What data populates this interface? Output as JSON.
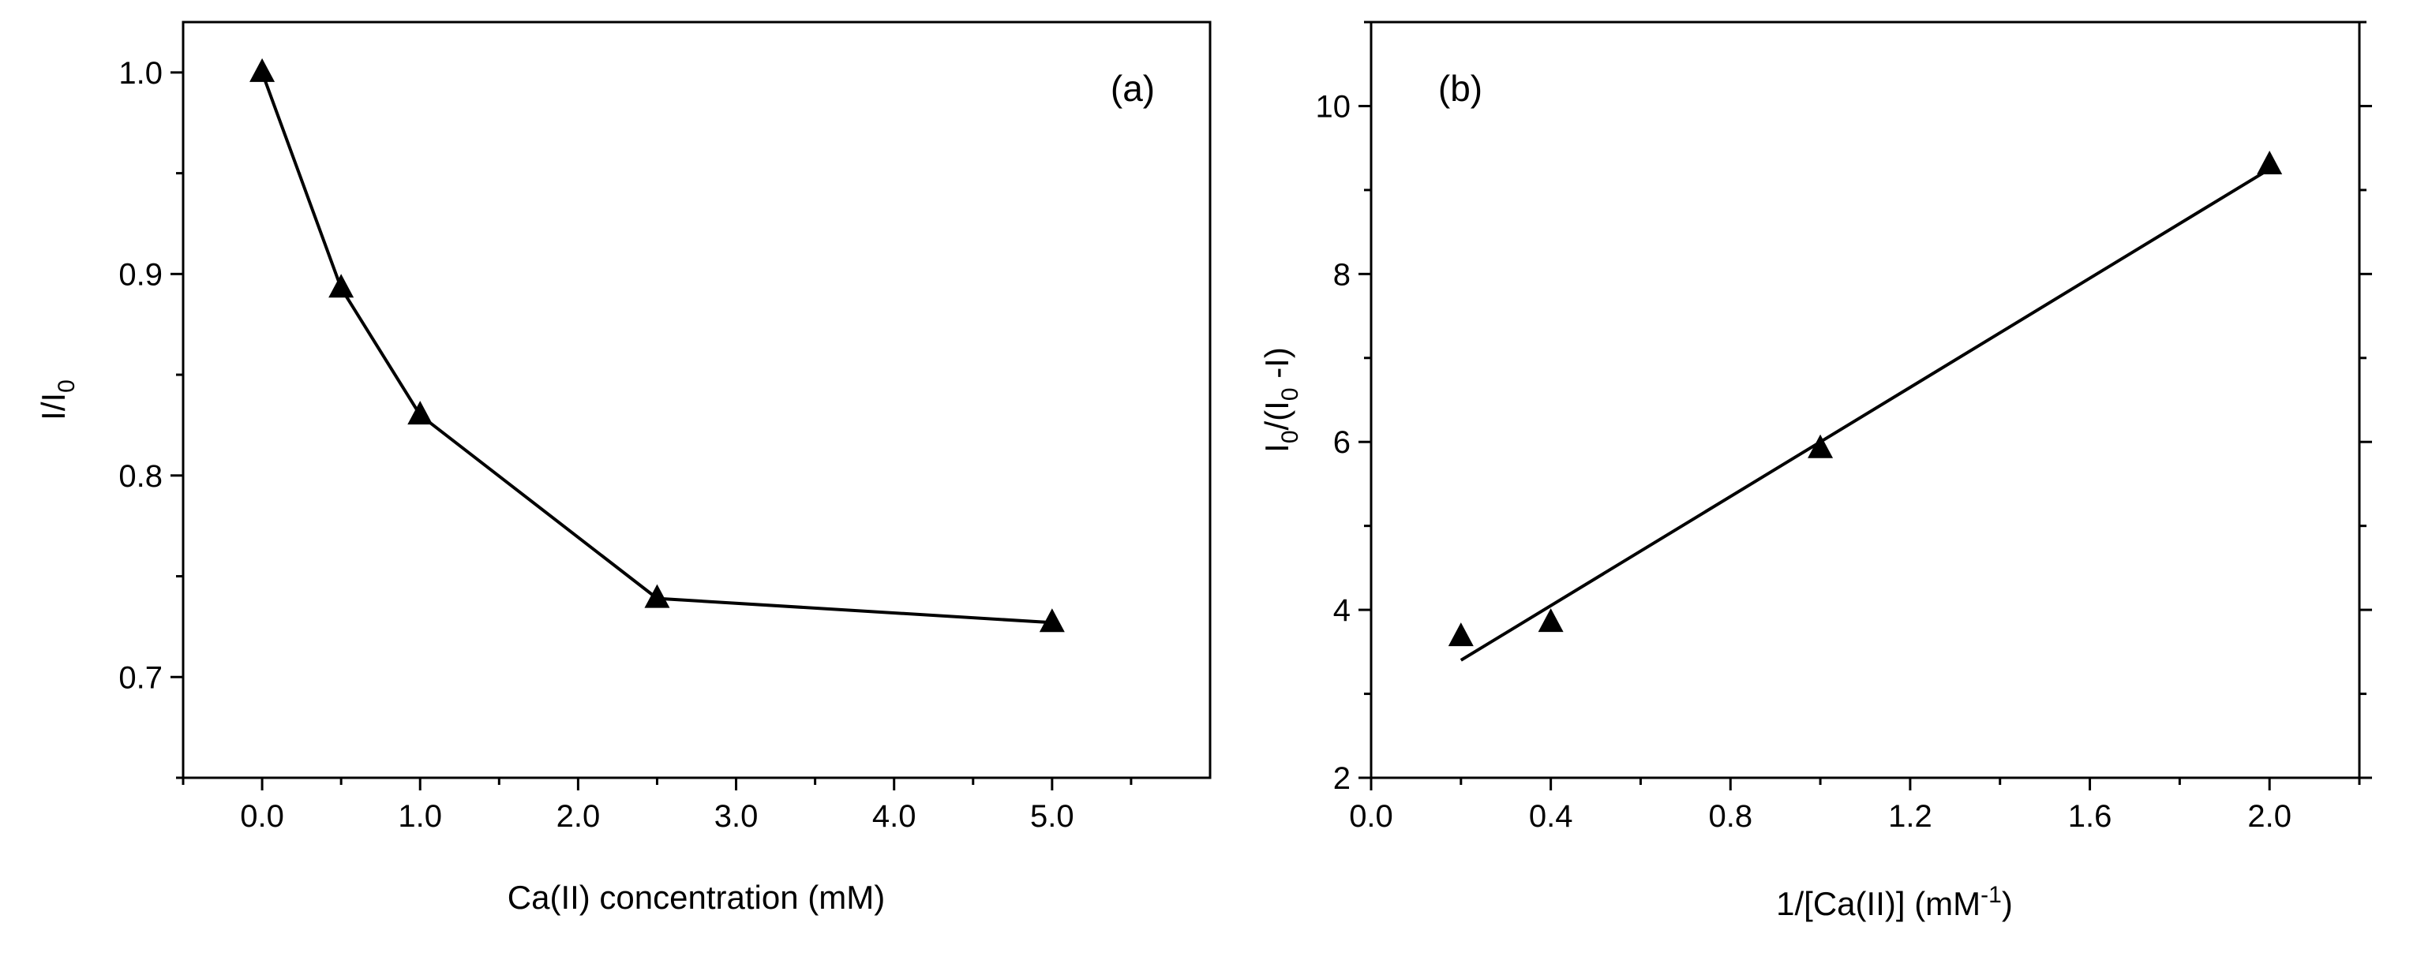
{
  "chart_data": [
    {
      "type": "line",
      "panel_label": "(a)",
      "xlabel": "Ca(II) concentration (mM)",
      "ylabel_main": "I/I",
      "ylabel_sub": "0",
      "xlim": [
        -0.5,
        6.0
      ],
      "ylim": [
        0.65,
        1.025
      ],
      "x_ticks": [
        0.0,
        1.0,
        2.0,
        3.0,
        4.0,
        5.0
      ],
      "x_tick_labels": [
        "0.0",
        "1.0",
        "2.0",
        "3.0",
        "4.0",
        "5.0"
      ],
      "x_minor_ticks": [
        -0.5,
        0.5,
        1.5,
        2.5,
        3.5,
        4.5,
        5.5
      ],
      "y_ticks": [
        0.7,
        0.8,
        0.9,
        1.0
      ],
      "y_tick_labels": [
        "0.7",
        "0.8",
        "0.9",
        "1.0"
      ],
      "y_minor_ticks": [
        0.65,
        0.75,
        0.85,
        0.95
      ],
      "series": [
        {
          "name": "I/I0",
          "marker": "triangle",
          "connect": true,
          "x": [
            0.0,
            0.5,
            1.0,
            2.5,
            5.0
          ],
          "y": [
            1.0,
            0.893,
            0.83,
            0.739,
            0.727
          ]
        }
      ],
      "grid": false
    },
    {
      "type": "scatter",
      "panel_label": "(b)",
      "xlabel_main": "1/[Ca(II)] (mM",
      "xlabel_sup": "-1",
      "xlabel_end": ")",
      "ylabel_parts": [
        "I",
        "0",
        "/(I",
        "0",
        " -I)"
      ],
      "xlim": [
        0.0,
        2.2
      ],
      "ylim": [
        2,
        11
      ],
      "x_ticks": [
        0.0,
        0.4,
        0.8,
        1.2,
        1.6,
        2.0
      ],
      "x_tick_labels": [
        "0.0",
        "0.4",
        "0.8",
        "1.2",
        "1.6",
        "2.0"
      ],
      "x_minor_ticks": [
        0.2,
        0.6,
        1.0,
        1.4,
        1.8,
        2.2
      ],
      "y_ticks": [
        2,
        4,
        6,
        8,
        10
      ],
      "y_tick_labels": [
        "2",
        "4",
        "6",
        "8",
        "10"
      ],
      "y_minor_ticks": [
        3,
        5,
        7,
        9,
        11
      ],
      "series": [
        {
          "name": "I0/(I0-I)",
          "marker": "triangle",
          "connect": false,
          "x": [
            0.2,
            0.4,
            1.0,
            2.0
          ],
          "y": [
            3.68,
            3.85,
            5.92,
            9.3
          ]
        }
      ],
      "fit_line": {
        "x": [
          0.2,
          2.0
        ],
        "y": [
          3.4,
          9.25
        ]
      },
      "grid": false
    }
  ]
}
